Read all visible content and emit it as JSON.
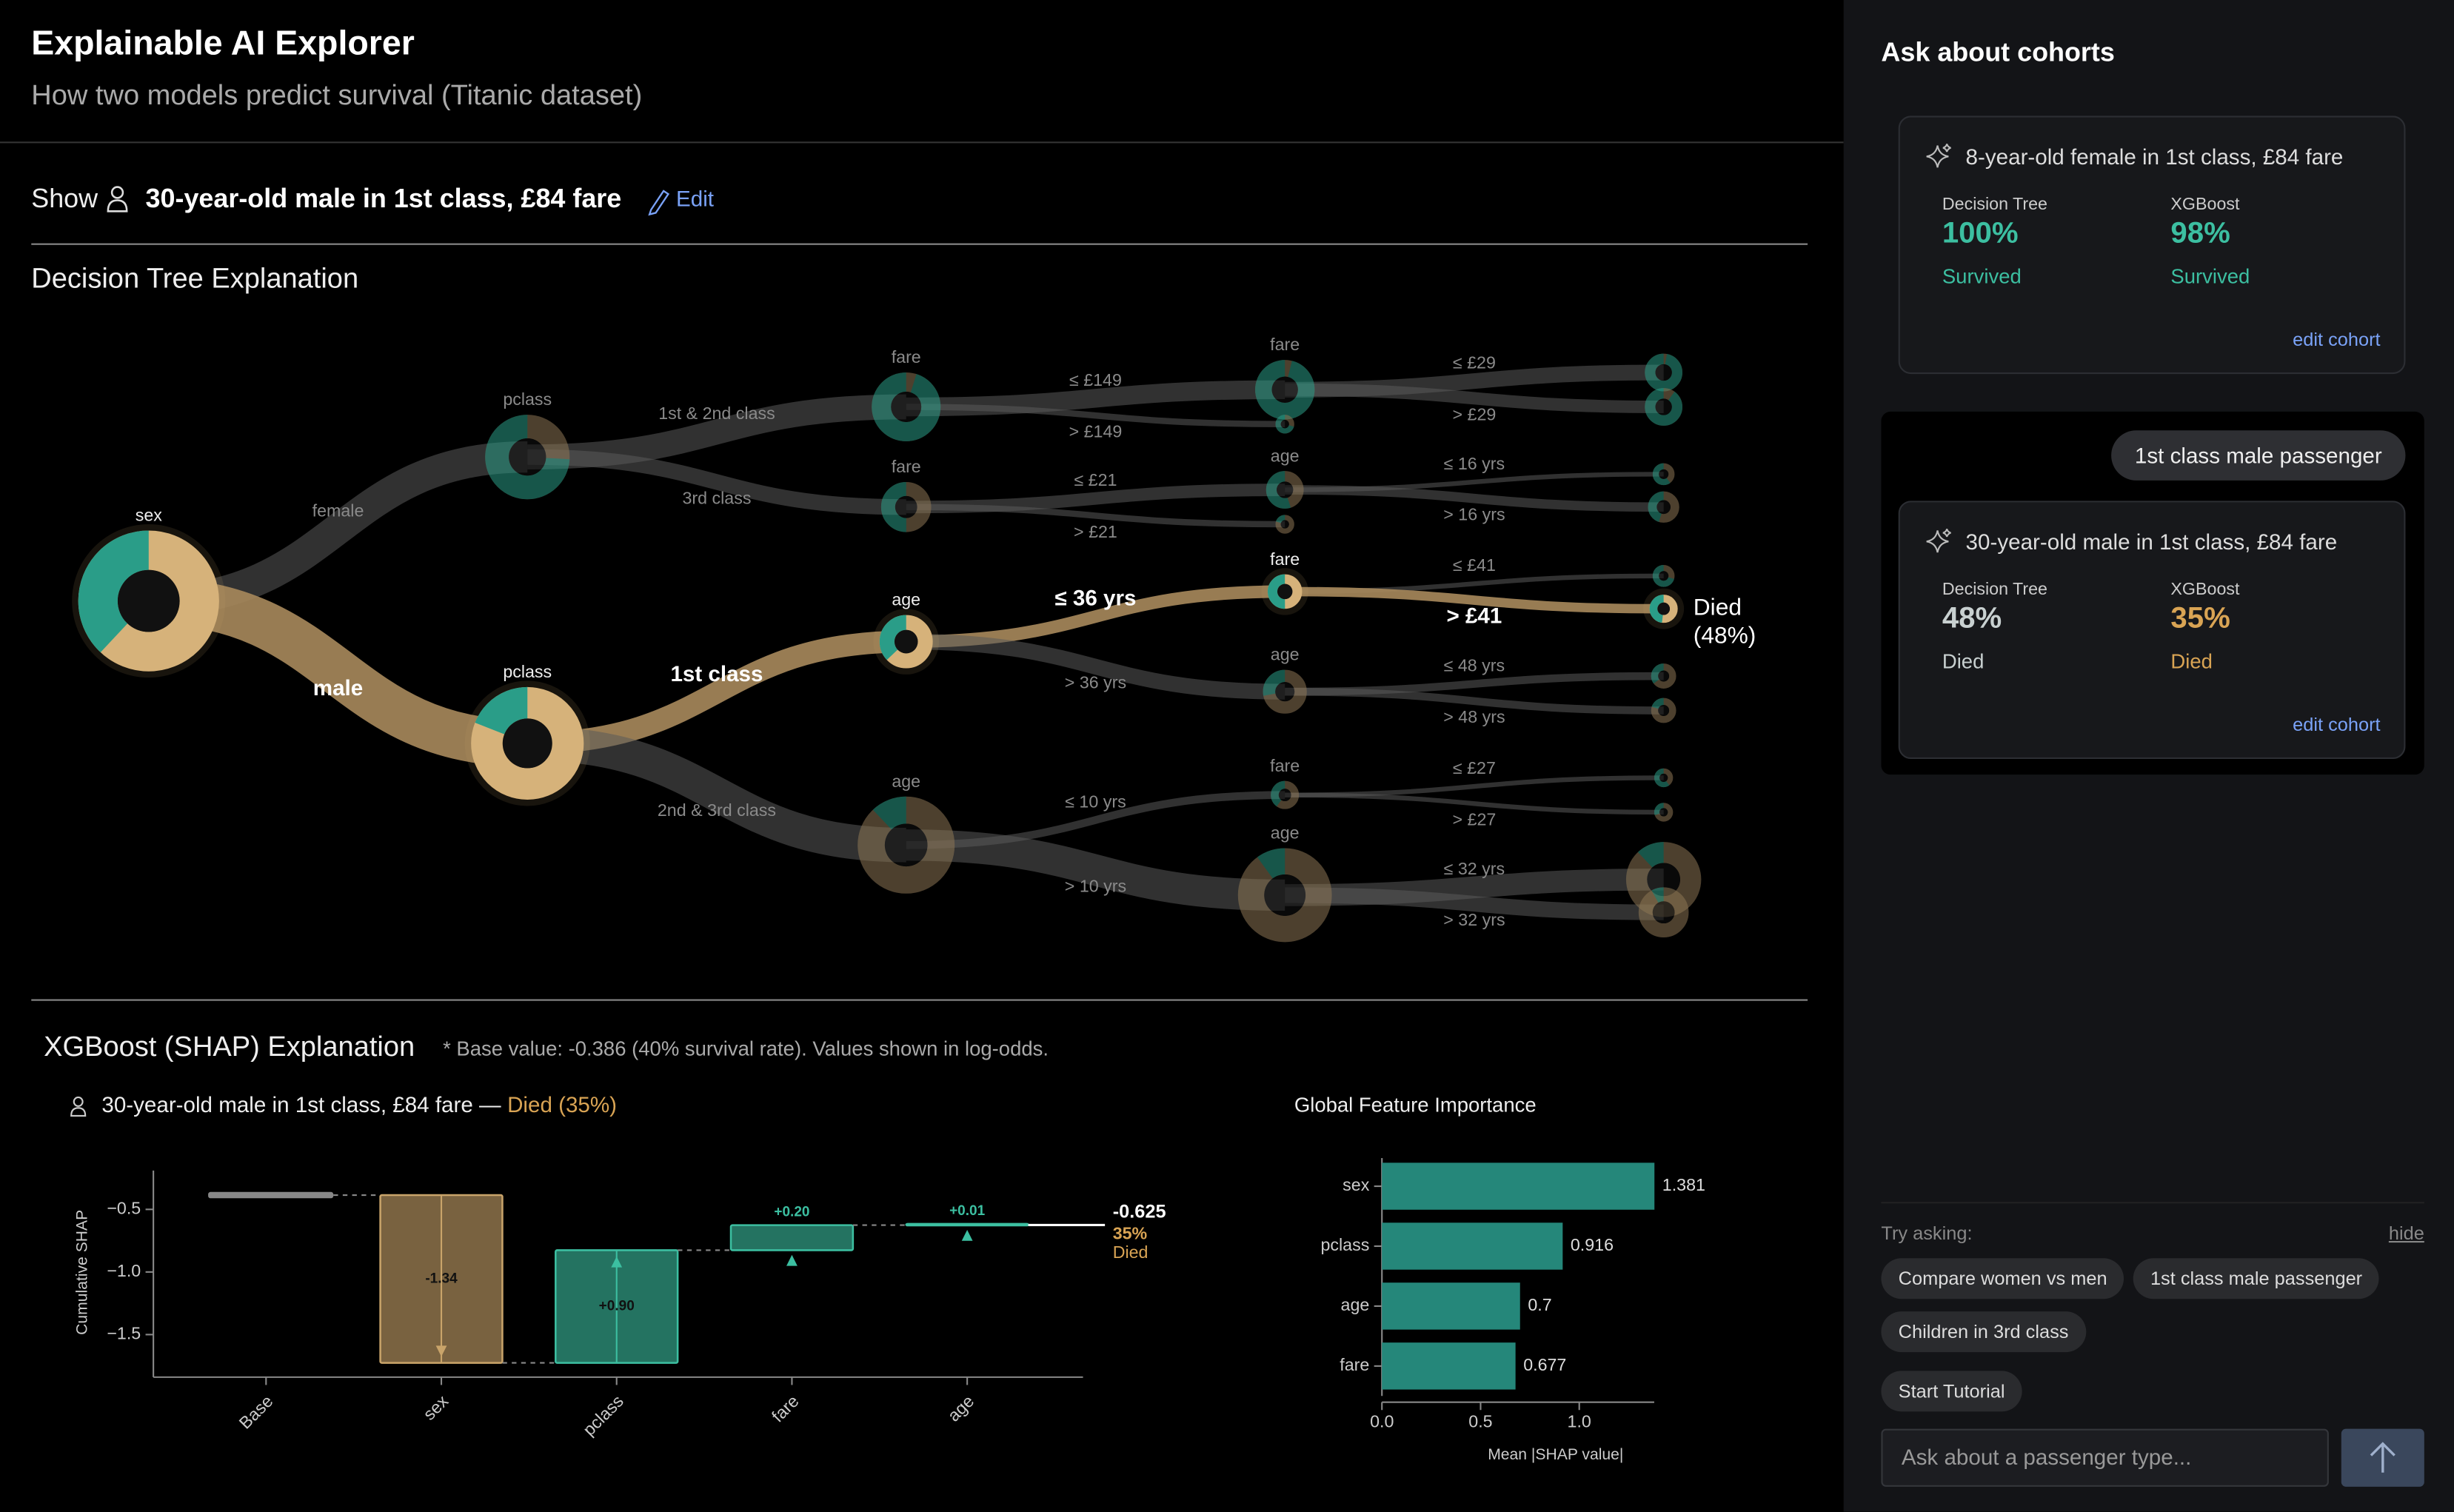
{
  "header": {
    "title": "Explainable AI Explorer",
    "subtitle": "How two models predict survival (Titanic dataset)"
  },
  "selection": {
    "prefix": "Show",
    "passenger": "30-year-old male in 1st class, £84 fare",
    "edit": "Edit"
  },
  "tree": {
    "title": "Decision Tree Explanation",
    "nodes": [
      {
        "label": "sex",
        "survival": 38
      },
      {
        "label": "pclass",
        "survival": 74
      },
      {
        "label": "pclass",
        "survival": 19
      },
      {
        "label": "fare",
        "survival": 95
      },
      {
        "label": "fare",
        "survival": 50
      },
      {
        "label": "age",
        "survival": 37
      },
      {
        "label": "age",
        "survival": 12
      },
      {
        "label": "fare",
        "survival": 96
      },
      {
        "survival": 70
      },
      {
        "label": "age",
        "survival": 55
      },
      {
        "survival": 20
      },
      {
        "label": "fare",
        "survival": 50
      },
      {
        "label": "age",
        "survival": 28
      },
      {
        "label": "fare",
        "survival": 40
      },
      {
        "label": "age",
        "survival": 10
      },
      {
        "survival": 97
      },
      {
        "survival": 90
      },
      {
        "survival": 60
      },
      {
        "survival": 45
      },
      {
        "survival": 70
      },
      {
        "survival": 48
      },
      {
        "survival": 35
      },
      {
        "survival": 20
      },
      {
        "survival": 60
      },
      {
        "survival": 30
      },
      {
        "survival": 12
      },
      {
        "survival": 8
      }
    ],
    "edges": [
      "female",
      "male",
      "1st & 2nd class",
      "3rd class",
      "1st class",
      "2nd & 3rd class",
      "≤ £149",
      "> £149",
      "≤ £21",
      "> £21",
      "≤ 36 yrs",
      "> 36 yrs",
      "≤ 10 yrs",
      "> 10 yrs",
      "≤ £29",
      "> £29",
      "≤ 16 yrs",
      "> 16 yrs",
      "≤ £41",
      "> £41",
      "≤ 48 yrs",
      "> 48 yrs",
      "≤ £27",
      "> £27",
      "≤ 32 yrs",
      "> 32 yrs"
    ],
    "outcome": "Died",
    "percent": "(48%)"
  },
  "shap": {
    "title": "XGBoost (SHAP) Explanation",
    "note": "* Base value: -0.386 (40% survival rate). Values shown in log-odds.",
    "passenger": "30-year-old male in 1st class, £84 fare —",
    "prediction": "Died (35%)",
    "waterfall": {
      "type": "waterfall",
      "ylabel": "Cumulative SHAP",
      "categories": [
        "Base",
        "sex",
        "pclass",
        "fare",
        "age"
      ],
      "values": [
        -0.386,
        -1.34,
        0.9,
        0.2,
        0.01
      ],
      "value_labels": [
        null,
        "-1.34",
        "+0.90",
        "+0.20",
        "+0.01"
      ],
      "ylim": [
        -1.84,
        -0.19
      ],
      "yticks": [
        {
          "value": -0.5,
          "label": "−0.5"
        },
        {
          "value": -1,
          "label": "−1.0"
        },
        {
          "value": -1.5,
          "label": "−1.5"
        }
      ],
      "total": -0.625,
      "probability": "35%",
      "outcome": "Died",
      "colors": {
        "negative": "#c9a46a",
        "positive": "#3cbfa1",
        "base": "#888888"
      }
    },
    "importance": {
      "type": "bar",
      "title": "Global Feature Importance",
      "categories": [
        "sex",
        "pclass",
        "age",
        "fare"
      ],
      "values": [
        1.381,
        0.916,
        0.7,
        0.677
      ],
      "color": "#25877a",
      "xlabel": "Mean |SHAP value|",
      "xlim": [
        0,
        1.38
      ],
      "xticks": [
        {
          "value": 0,
          "label": "0.0"
        },
        0.5,
        {
          "value": 1,
          "label": "1.0"
        }
      ]
    }
  },
  "sidebar": {
    "title": "Ask about cohorts",
    "cohorts": [
      {
        "cohort": "8-year-old female in 1st class, £84 fare",
        "models": [
          {
            "name": "Decision Tree",
            "value": "100%",
            "outcome": "Survived",
            "color": "#3cbfa1"
          },
          {
            "name": "XGBoost",
            "value": "98%",
            "outcome": "Survived",
            "color": "#3cbfa1"
          }
        ],
        "link": "edit cohort"
      },
      {
        "query": "1st class male passenger",
        "cohort": "30-year-old male in 1st class, £84 fare",
        "models": [
          {
            "name": "Decision Tree",
            "value": "48%",
            "outcome": "Died",
            "color": "#c8d0d0"
          },
          {
            "name": "XGBoost",
            "value": "35%",
            "outcome": "Died",
            "color": "#d9a454"
          }
        ],
        "link": "edit cohort"
      }
    ],
    "try_label": "Try asking:",
    "hide": "hide",
    "suggestions": [
      "Compare women vs men",
      "1st class male passenger",
      "Children in 3rd class"
    ],
    "tutorial": "Start Tutorial",
    "input": "Ask about a passenger type..."
  }
}
